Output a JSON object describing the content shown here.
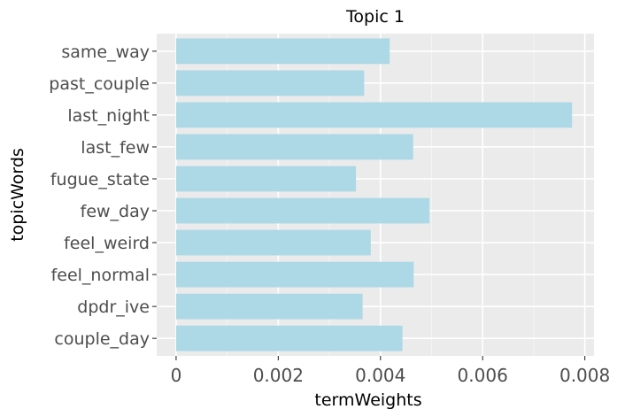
{
  "chart_data": {
    "type": "bar",
    "orientation": "horizontal",
    "title": "Topic 1",
    "xlabel": "termWeights",
    "ylabel": "topicWords",
    "categories": [
      "same_way",
      "past_couple",
      "last_night",
      "last_few",
      "fugue_state",
      "few_day",
      "feel_weird",
      "feel_normal",
      "dpdr_ive",
      "couple_day"
    ],
    "values": [
      0.00418,
      0.00368,
      0.00775,
      0.00464,
      0.00352,
      0.00496,
      0.00381,
      0.00465,
      0.00365,
      0.00443
    ],
    "xlim": [
      -0.00038,
      0.00818
    ],
    "xticks": [
      0,
      0.002,
      0.004,
      0.006,
      0.008
    ],
    "xtick_labels": [
      "0",
      "0.002",
      "0.004",
      "0.006",
      "0.008"
    ],
    "grid": true,
    "colors": {
      "bar": "#add8e6",
      "panel": "#ebebeb",
      "grid_major": "#ffffff",
      "tick_text": "#4d4d4d"
    }
  }
}
